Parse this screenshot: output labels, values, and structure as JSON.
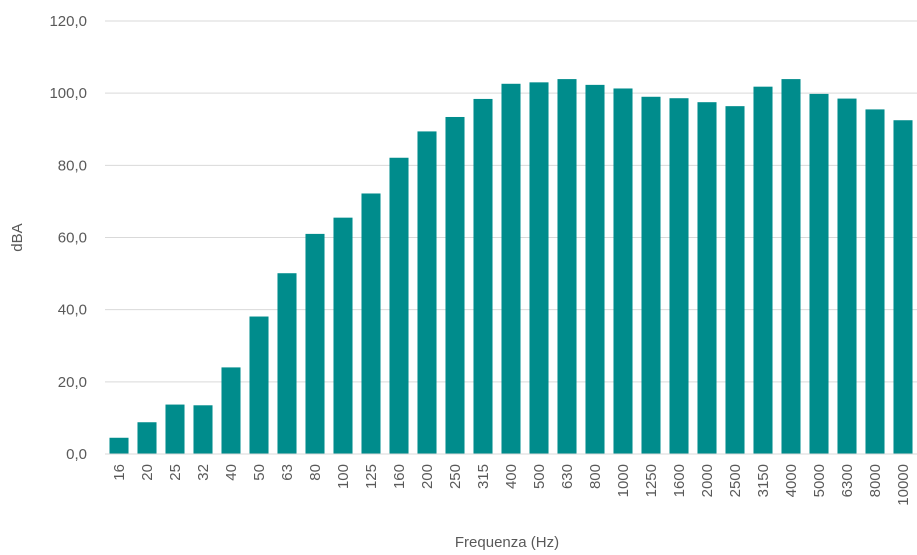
{
  "chart_data": {
    "type": "bar",
    "title": "",
    "xlabel": "Frequenza (Hz)",
    "ylabel": "dBA",
    "ylim": [
      0,
      120
    ],
    "ytick_values": [
      0,
      20,
      40,
      60,
      80,
      100,
      120
    ],
    "ytick_labels": [
      "0,0",
      "20,0",
      "40,0",
      "60,0",
      "80,0",
      "100,0",
      "120,0"
    ],
    "grid": true,
    "legend": "none",
    "bar_color": "#008C8C",
    "categories": [
      "16",
      "20",
      "25",
      "32",
      "40",
      "50",
      "63",
      "80",
      "100",
      "125",
      "160",
      "200",
      "250",
      "315",
      "400",
      "500",
      "630",
      "800",
      "1000",
      "1250",
      "1600",
      "2000",
      "2500",
      "3150",
      "4000",
      "5000",
      "6300",
      "8000",
      "10000"
    ],
    "values": [
      4.5,
      8.8,
      13.7,
      13.5,
      24.0,
      38.1,
      50.1,
      61.0,
      65.5,
      72.2,
      82.1,
      89.4,
      93.4,
      98.4,
      102.6,
      103.0,
      103.9,
      102.3,
      101.3,
      99.0,
      98.6,
      97.5,
      96.4,
      101.8,
      103.9,
      99.8,
      98.5,
      95.5,
      92.5
    ]
  }
}
